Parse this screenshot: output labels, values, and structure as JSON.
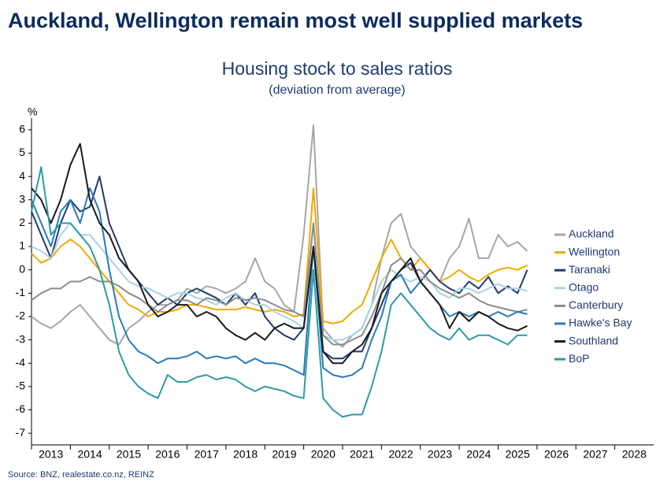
{
  "header": {
    "title": "Auckland, Wellington remain most well supplied markets"
  },
  "chart_data": {
    "type": "line",
    "title": "Housing stock to sales ratios",
    "subtitle": "(deviation from average)",
    "y_unit": "%",
    "x": [
      2013,
      2013.25,
      2013.5,
      2013.75,
      2014,
      2014.25,
      2014.5,
      2014.75,
      2015,
      2015.25,
      2015.5,
      2015.75,
      2016,
      2016.25,
      2016.5,
      2016.75,
      2017,
      2017.25,
      2017.5,
      2017.75,
      2018,
      2018.25,
      2018.5,
      2018.75,
      2019,
      2019.25,
      2019.5,
      2019.75,
      2020,
      2020.25,
      2020.5,
      2020.75,
      2021,
      2021.25,
      2021.5,
      2021.75,
      2022,
      2022.25,
      2022.5,
      2022.75,
      2023,
      2023.25,
      2023.5,
      2023.75,
      2024,
      2024.25,
      2024.5,
      2024.75,
      2025,
      2025.25,
      2025.5,
      2025.75
    ],
    "xlim": [
      2013,
      2029
    ],
    "xticks": [
      2013,
      2014,
      2015,
      2016,
      2017,
      2018,
      2019,
      2020,
      2021,
      2022,
      2023,
      2024,
      2025,
      2026,
      2027,
      2028
    ],
    "ylim": [
      -7.5,
      6.5
    ],
    "yticks": [
      6,
      5,
      4,
      3,
      2,
      1,
      0,
      -1,
      -2,
      -3,
      -4,
      -5,
      -6,
      -7
    ],
    "series": [
      {
        "name": "Auckland",
        "color": "#a6a6a6",
        "values": [
          -2,
          -2.3,
          -2.5,
          -2.2,
          -1.8,
          -1.5,
          -2,
          -2.5,
          -3,
          -3.2,
          -2.5,
          -2.2,
          -1.8,
          -1.5,
          -1.5,
          -1.3,
          -0.8,
          -1,
          -0.7,
          -0.8,
          -1,
          -0.8,
          -0.5,
          0.5,
          -0.5,
          -0.8,
          -1.5,
          -1.8,
          1.5,
          6.2,
          -2.5,
          -3,
          -3.3,
          -2.8,
          -2.5,
          -1.5,
          0.5,
          2,
          2.4,
          1,
          0.5,
          0,
          -0.5,
          0.5,
          1,
          2.2,
          0.5,
          0.5,
          1.5,
          1,
          1.2,
          0.8
        ]
      },
      {
        "name": "Wellington",
        "color": "#f2a900",
        "values": [
          0.7,
          0.3,
          0.5,
          1,
          1.3,
          1,
          0.5,
          0,
          -0.5,
          -1,
          -1.5,
          -1.7,
          -2,
          -1.8,
          -1.8,
          -1.7,
          -1.5,
          -1.5,
          -1.6,
          -1.7,
          -1.7,
          -1.7,
          -1.6,
          -1.7,
          -1.8,
          -1.7,
          -1.8,
          -2,
          -1.9,
          3.5,
          -2.2,
          -2.3,
          -2.2,
          -1.8,
          -1.5,
          -0.5,
          0.5,
          1.3,
          0.5,
          0,
          0.5,
          0,
          -0.5,
          -0.3,
          0,
          -0.3,
          -0.5,
          -0.2,
          0,
          0.1,
          0,
          0.2
        ]
      },
      {
        "name": "Taranaki",
        "color": "#1f3a6e",
        "values": [
          2.5,
          1.5,
          0.5,
          2,
          3,
          2.5,
          2.7,
          4,
          2,
          1,
          0,
          -0.5,
          -1,
          -1.5,
          -1.2,
          -1.5,
          -1,
          -0.8,
          -1,
          -1.2,
          -1.5,
          -1,
          -1.5,
          -1,
          -2,
          -2.5,
          -2.8,
          -3,
          -2.5,
          1,
          -3.5,
          -3.8,
          -3.8,
          -3.5,
          -3.5,
          -2.5,
          -1.5,
          -0.5,
          0,
          0.3,
          -0.5,
          0,
          -0.5,
          -0.8,
          -1,
          -0.5,
          -0.8,
          -0.3,
          -1,
          -0.7,
          -1,
          0
        ]
      },
      {
        "name": "Otago",
        "color": "#a9d4e0",
        "values": [
          1,
          0.8,
          0.5,
          1.5,
          2,
          1.5,
          1.5,
          1,
          0.5,
          0,
          -0.5,
          -0.7,
          -0.8,
          -1,
          -1.2,
          -1,
          -1,
          -1.2,
          -1.3,
          -1.5,
          -1.2,
          -1,
          -1.3,
          -1.5,
          -1.5,
          -1.8,
          -2,
          -2.2,
          -2.5,
          2,
          -2.8,
          -3,
          -3,
          -2.8,
          -2.5,
          -1.5,
          -0.5,
          0,
          -0.3,
          -0.5,
          -0.3,
          -0.5,
          -1,
          -1.2,
          -0.8,
          -0.8,
          -1,
          -0.8,
          -0.6,
          -0.8,
          -0.8,
          -0.9
        ]
      },
      {
        "name": "Canterbury",
        "color": "#8c8c8c",
        "values": [
          -1.3,
          -1,
          -0.8,
          -0.8,
          -0.5,
          -0.5,
          -0.3,
          -0.5,
          -0.5,
          -0.7,
          -1,
          -1.2,
          -1.5,
          -1.8,
          -1.5,
          -1.3,
          -1.3,
          -1.5,
          -1.2,
          -1.3,
          -1.5,
          -1.2,
          -1.3,
          -1.2,
          -1.3,
          -1.5,
          -1.7,
          -1.8,
          -2,
          2,
          -2.8,
          -3.2,
          -3.2,
          -3,
          -2.8,
          -2,
          -1,
          0.2,
          0.5,
          0,
          0,
          -0.5,
          -0.8,
          -1,
          -1.2,
          -1,
          -1.3,
          -1.5,
          -1.6,
          -1.7,
          -1.8,
          -1.7
        ]
      },
      {
        "name": "Hawke's Bay",
        "color": "#2a7ab8",
        "values": [
          3,
          2,
          1,
          2.5,
          3,
          2,
          3.5,
          2.5,
          0,
          -2,
          -3,
          -3.5,
          -3.7,
          -4,
          -3.8,
          -3.8,
          -3.7,
          -3.5,
          -3.8,
          -3.7,
          -3.8,
          -3.7,
          -4,
          -3.8,
          -4,
          -4,
          -4.1,
          -4.3,
          -4.5,
          1,
          -4.2,
          -4.5,
          -4.6,
          -4.5,
          -4.2,
          -3,
          -2,
          -0.5,
          -0.2,
          -1,
          -0.5,
          -1,
          -1.5,
          -2,
          -1.8,
          -2,
          -1.8,
          -2,
          -1.8,
          -2,
          -1.8,
          -1.9
        ]
      },
      {
        "name": "Southland",
        "color": "#1a1a1a",
        "values": [
          3.5,
          3,
          2,
          3,
          4.5,
          5.4,
          3,
          2,
          1.5,
          0.5,
          0,
          -0.5,
          -1.5,
          -2,
          -1.8,
          -1.5,
          -1.5,
          -2,
          -1.8,
          -2,
          -2.5,
          -2.8,
          -3,
          -2.7,
          -3,
          -2.5,
          -2.3,
          -2.5,
          -2.5,
          1,
          -3.5,
          -4,
          -4,
          -3.5,
          -3.2,
          -2.5,
          -1,
          -0.5,
          0,
          0.5,
          -0.5,
          -1,
          -1.5,
          -2.5,
          -1.8,
          -2.2,
          -1.8,
          -2,
          -2.3,
          -2.5,
          -2.6,
          -2.4
        ]
      },
      {
        "name": "BoP",
        "color": "#2e9aa5",
        "values": [
          2.5,
          4.4,
          1.5,
          2,
          2,
          1.5,
          1,
          0,
          -1.5,
          -3.5,
          -4.5,
          -5,
          -5.3,
          -5.5,
          -4.5,
          -4.8,
          -4.8,
          -4.6,
          -4.5,
          -4.7,
          -4.6,
          -4.7,
          -5,
          -5.2,
          -5,
          -5.1,
          -5.2,
          -5.4,
          -5.5,
          0,
          -5.5,
          -6,
          -6.3,
          -6.2,
          -6.2,
          -5,
          -3.5,
          -1.5,
          -1,
          -1.5,
          -2,
          -2.5,
          -2.8,
          -3,
          -2.5,
          -3,
          -2.8,
          -2.8,
          -3,
          -3.2,
          -2.8,
          -2.8
        ]
      }
    ]
  },
  "source": "Source: BNZ, realestate.co.nz, REINZ"
}
